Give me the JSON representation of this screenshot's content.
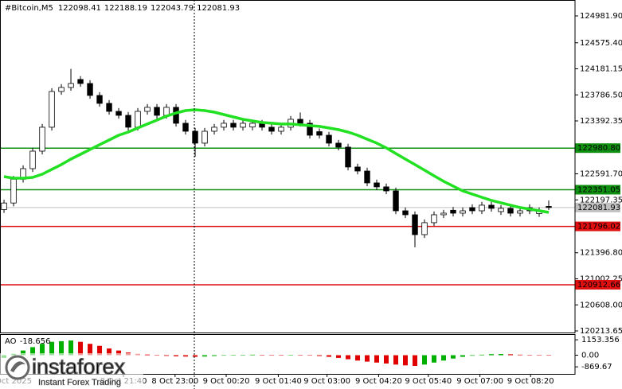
{
  "chart_data": {
    "type": "candlestick",
    "symbol": "#Bitcoin,M5",
    "open": [
      122050,
      122150,
      122510,
      122670,
      122935,
      123297,
      123838,
      123899,
      124020,
      123959,
      123778,
      123658,
      123537,
      123477,
      123297,
      123537,
      123598,
      123477,
      123598,
      123357,
      123236,
      123056,
      123236,
      123297,
      123357,
      123297,
      123300,
      123357,
      123297,
      123236,
      123297,
      123417,
      123357,
      123230,
      123176,
      123056,
      122996,
      122695,
      122634,
      122454,
      122394,
      122333,
      122032,
      121972,
      121671,
      121852,
      121972,
      122040,
      121996,
      122080,
      122032,
      122117,
      122020,
      122069,
      121996,
      122080,
      121990,
      122098.41
    ],
    "high": [
      122200,
      122560,
      122720,
      122985,
      123347,
      123888,
      123949,
      124180,
      124070,
      124009,
      123828,
      123708,
      123587,
      123527,
      123587,
      123648,
      123648,
      123648,
      123648,
      123407,
      123286,
      123286,
      123347,
      123407,
      123407,
      123407,
      123407,
      123407,
      123347,
      123347,
      123467,
      123520,
      123407,
      123280,
      123226,
      123106,
      123046,
      122745,
      122684,
      122504,
      122444,
      122383,
      122082,
      122022,
      121902,
      122022,
      122046,
      122090,
      122082,
      122130,
      122167,
      122167,
      122119,
      122119,
      122082,
      122130,
      122082,
      122188.19
    ],
    "low": [
      122000,
      122100,
      122460,
      122620,
      122885,
      123247,
      123788,
      123849,
      123909,
      123728,
      123608,
      123487,
      123427,
      123247,
      123247,
      123487,
      123427,
      123427,
      123307,
      123186,
      122850,
      123006,
      123186,
      123247,
      123247,
      123247,
      123250,
      123247,
      123186,
      123186,
      123247,
      123307,
      123126,
      123126,
      123006,
      122946,
      122645,
      122584,
      122404,
      122344,
      122283,
      121982,
      121922,
      121480,
      121621,
      121802,
      121922,
      121946,
      121946,
      121982,
      121982,
      122019,
      121970,
      121946,
      121946,
      121982,
      121940,
      122043.79
    ],
    "close": [
      122150,
      122510,
      122670,
      122935,
      123297,
      123838,
      123899,
      123959,
      123959,
      123778,
      123658,
      123537,
      123477,
      123297,
      123537,
      123598,
      123477,
      123598,
      123357,
      123236,
      123056,
      123236,
      123297,
      123357,
      123297,
      123357,
      123357,
      123297,
      123236,
      123297,
      123417,
      123357,
      123176,
      123176,
      123056,
      122996,
      122695,
      122634,
      122454,
      122394,
      122333,
      122032,
      121972,
      121671,
      121852,
      121972,
      121996,
      121996,
      122032,
      122032,
      122117,
      122069,
      122069,
      121996,
      122032,
      122032,
      122032,
      122081.93
    ],
    "candle_colors": {
      "up": "#ffffff",
      "down": "#000000",
      "outline": "#000000"
    },
    "moving_average": {
      "color": "#22e022",
      "values": [
        122550,
        122526,
        122526,
        122538,
        122586,
        122659,
        122731,
        122815,
        122887,
        122960,
        123032,
        123104,
        123176,
        123224,
        123285,
        123345,
        123405,
        123465,
        123513,
        123549,
        123561,
        123549,
        123525,
        123489,
        123453,
        123417,
        123393,
        123369,
        123357,
        123345,
        123345,
        123333,
        123321,
        123309,
        123285,
        123260,
        123224,
        123176,
        123116,
        123056,
        122984,
        122899,
        122815,
        122731,
        122647,
        122562,
        122478,
        122406,
        122333,
        122285,
        122237,
        122189,
        122153,
        122117,
        122081,
        122057,
        122033,
        122008
      ]
    },
    "ylim": [
      120189.6,
      125222.7
    ],
    "yticks": [
      {
        "value": 124981.9,
        "label": "124981.90"
      },
      {
        "value": 124575.4,
        "label": "124575.40"
      },
      {
        "value": 124181.15,
        "label": "124181.15"
      },
      {
        "value": 123786.5,
        "label": "123786.50"
      },
      {
        "value": 123392.35,
        "label": "123392.35"
      },
      {
        "value": 122591.7,
        "label": "122591.70"
      },
      {
        "value": 122197.35,
        "label": "122197.35"
      },
      {
        "value": 121396.8,
        "label": "121396.80"
      },
      {
        "value": 121002.25,
        "label": "121002.25"
      },
      {
        "value": 120608,
        "label": "120608.00"
      },
      {
        "value": 120213.65,
        "label": "120213.65"
      }
    ],
    "xlim": [
      -0.42,
      59.75
    ],
    "xticks": [
      {
        "value": 0.6,
        "label": "8 Oct 2025"
      },
      {
        "value": 12.5,
        "label": "8 Oct 21:40"
      },
      {
        "value": 17.9,
        "label": "8 Oct 23:00"
      },
      {
        "value": 23.25,
        "label": "9 Oct 00:20"
      },
      {
        "value": 28.7,
        "label": "9 Oct 01:40"
      },
      {
        "value": 33.8,
        "label": "9 Oct 03:00"
      },
      {
        "value": 39.2,
        "label": "9 Oct 04:20"
      },
      {
        "value": 44.4,
        "label": "9 Oct 05:40"
      },
      {
        "value": 49.8,
        "label": "9 Oct 07:00"
      },
      {
        "value": 55.1,
        "label": "9 Oct 08:20"
      }
    ],
    "levels": [
      {
        "value": 122980.8,
        "label": "122980.80",
        "color": "#109010"
      },
      {
        "value": 122351.05,
        "label": "122351.05",
        "color": "#109010"
      },
      {
        "value": 121796.02,
        "label": "121796.02",
        "color": "#e01010"
      },
      {
        "value": 120912.66,
        "label": "120912.66",
        "color": "#e01010"
      }
    ],
    "current_price_color": "#c0c0c0",
    "ao": {
      "label": "AO",
      "values": [
        -200,
        100,
        350,
        600,
        850,
        1000,
        1050,
        1100,
        1000,
        850,
        700,
        500,
        350,
        200,
        100,
        50,
        0,
        -50,
        -80,
        -100,
        -120,
        -100,
        -60,
        -20,
        10,
        30,
        40,
        30,
        20,
        10,
        20,
        10,
        -20,
        -60,
        -120,
        -200,
        -300,
        -400,
        -480,
        -550,
        -620,
        -700,
        -760,
        -800,
        -700,
        -550,
        -400,
        -250,
        -120,
        -40,
        40,
        80,
        90,
        70,
        40,
        10,
        -10,
        -18.656
      ],
      "up_color": "#00b000",
      "down_color": "#e00000",
      "ylim": [
        -1396,
        1517
      ],
      "yticks": [
        1153.356,
        {
          "value": 0,
          "label": "0.00"
        },
        {
          "value": -869.67,
          "label": "-869.67"
        }
      ]
    },
    "watermark": {
      "brand": "instaforex",
      "tagline": "Instant Forex Trading"
    }
  }
}
